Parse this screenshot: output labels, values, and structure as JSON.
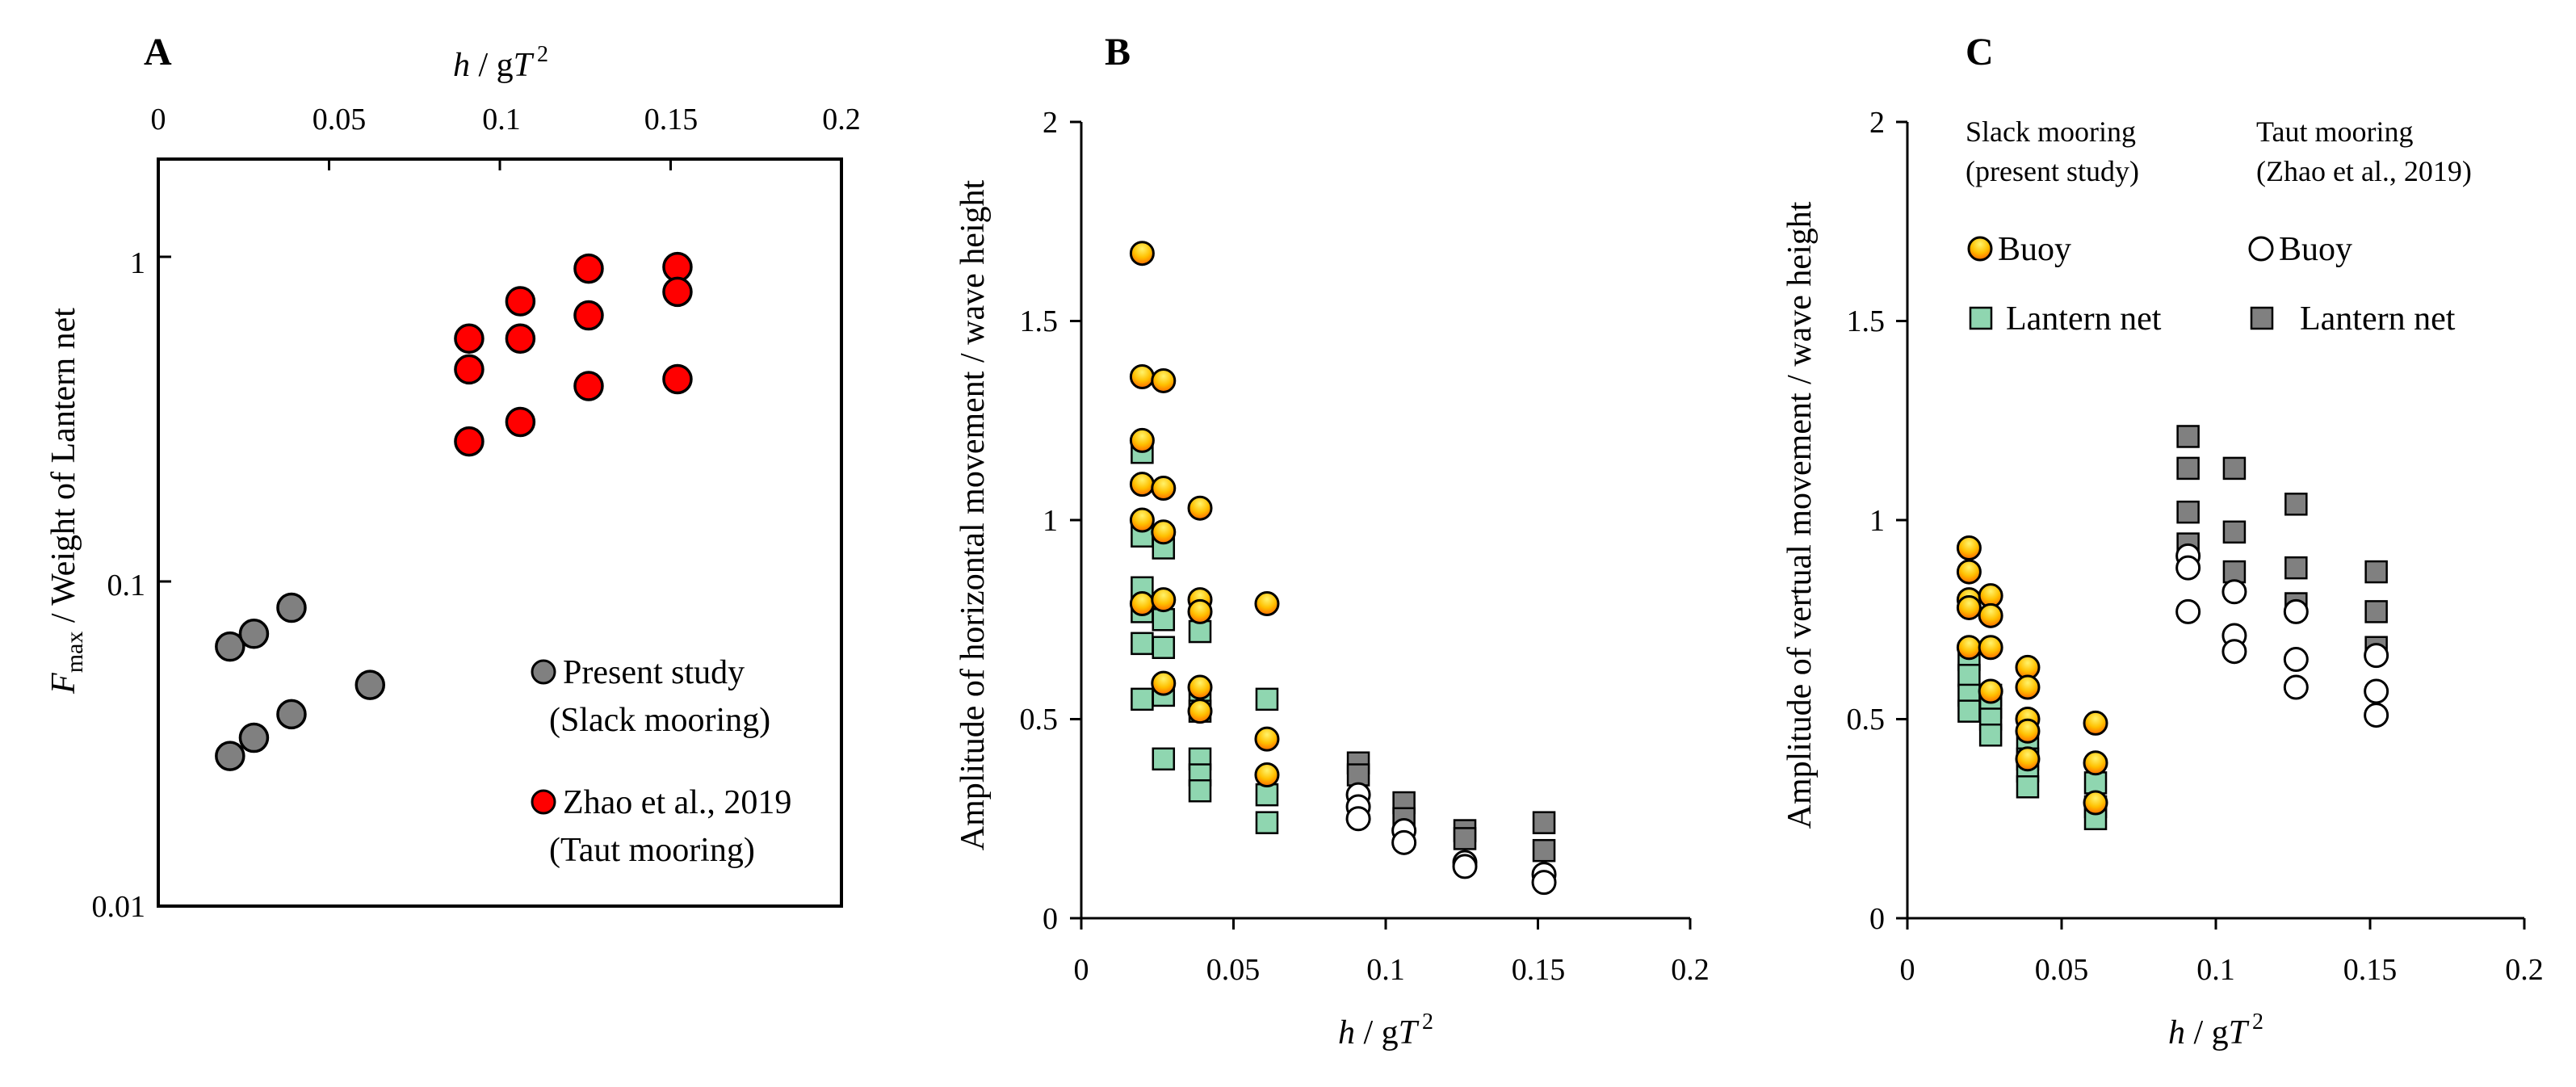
{
  "chart_data": [
    {
      "panel": "A",
      "type": "scatter",
      "xlabel": "h / gT 2",
      "xlabel_parts": {
        "h": "h",
        "sep": " / g",
        "T": "T",
        "exp": "2"
      },
      "ylabel": "F max / Weight of Lantern net",
      "ylabel_parts": {
        "F": "F",
        "sub": "max",
        "rest": " / Weight of  Lantern net"
      },
      "xlim": [
        0,
        0.2
      ],
      "ylim": [
        0.01,
        2
      ],
      "y_scale": "log",
      "x_axis_position": "top",
      "xticks": [
        "0",
        "0.05",
        "0.1",
        "0.15",
        "0.2"
      ],
      "yticks": [
        "0.01",
        "0.1",
        "1"
      ],
      "legend_position": "bottom-right",
      "series": [
        {
          "name": "Present study (Slack mooring)",
          "legend_lines": [
            "Present study",
            "(Slack mooring)"
          ],
          "marker": "circle",
          "color": "#808080",
          "points": [
            [
              0.021,
              0.063
            ],
            [
              0.021,
              0.029
            ],
            [
              0.028,
              0.069
            ],
            [
              0.028,
              0.033
            ],
            [
              0.039,
              0.083
            ],
            [
              0.039,
              0.039
            ],
            [
              0.062,
              0.048
            ]
          ]
        },
        {
          "name": "Zhao et al., 2019 (Taut mooring)",
          "legend_lines": [
            "Zhao et al., 2019",
            "(Taut mooring)"
          ],
          "marker": "circle",
          "color": "#ff0000",
          "points": [
            [
              0.091,
              0.56
            ],
            [
              0.091,
              0.45
            ],
            [
              0.091,
              0.27
            ],
            [
              0.106,
              0.73
            ],
            [
              0.106,
              0.56
            ],
            [
              0.106,
              0.31
            ],
            [
              0.126,
              0.92
            ],
            [
              0.126,
              0.66
            ],
            [
              0.126,
              0.4
            ],
            [
              0.152,
              0.93
            ],
            [
              0.152,
              0.78
            ],
            [
              0.152,
              0.42
            ]
          ]
        }
      ]
    },
    {
      "panel": "B",
      "type": "scatter",
      "xlabel": "h / gT 2",
      "ylabel": "Amplitude of horizontal  movement / wave height",
      "xlim": [
        0,
        0.2
      ],
      "ylim": [
        0,
        2
      ],
      "xticks": [
        "0",
        "0.05",
        "0.1",
        "0.15",
        "0.2"
      ],
      "yticks": [
        "0",
        "0.5",
        "1",
        "1.5",
        "2"
      ],
      "series": [
        {
          "name": "Buoy (Slack mooring)",
          "marker": "circle-gradient",
          "color": "#ffc000",
          "points": [
            [
              0.02,
              1.67
            ],
            [
              0.02,
              1.36
            ],
            [
              0.02,
              1.2
            ],
            [
              0.02,
              1.09
            ],
            [
              0.02,
              1.0
            ],
            [
              0.02,
              0.79
            ],
            [
              0.027,
              1.35
            ],
            [
              0.027,
              1.08
            ],
            [
              0.027,
              0.97
            ],
            [
              0.027,
              0.8
            ],
            [
              0.027,
              0.59
            ],
            [
              0.039,
              1.03
            ],
            [
              0.039,
              0.8
            ],
            [
              0.039,
              0.77
            ],
            [
              0.039,
              0.58
            ],
            [
              0.039,
              0.52
            ],
            [
              0.061,
              0.79
            ],
            [
              0.061,
              0.45
            ],
            [
              0.061,
              0.36
            ]
          ]
        },
        {
          "name": "Lantern net (Slack mooring)",
          "marker": "square",
          "color": "#8fd6b0",
          "points": [
            [
              0.02,
              1.17
            ],
            [
              0.02,
              0.96
            ],
            [
              0.02,
              0.83
            ],
            [
              0.02,
              0.77
            ],
            [
              0.02,
              0.69
            ],
            [
              0.02,
              0.55
            ],
            [
              0.027,
              0.93
            ],
            [
              0.027,
              0.75
            ],
            [
              0.027,
              0.68
            ],
            [
              0.027,
              0.56
            ],
            [
              0.027,
              0.4
            ],
            [
              0.039,
              0.72
            ],
            [
              0.039,
              0.56
            ],
            [
              0.039,
              0.52
            ],
            [
              0.039,
              0.4
            ],
            [
              0.039,
              0.36
            ],
            [
              0.039,
              0.32
            ],
            [
              0.061,
              0.55
            ],
            [
              0.061,
              0.31
            ],
            [
              0.061,
              0.24
            ]
          ]
        },
        {
          "name": "Buoy (Taut mooring)",
          "marker": "circle-open",
          "color": "#ffffff",
          "points": [
            [
              0.091,
              0.31
            ],
            [
              0.091,
              0.28
            ],
            [
              0.091,
              0.25
            ],
            [
              0.106,
              0.22
            ],
            [
              0.106,
              0.19
            ],
            [
              0.126,
              0.14
            ],
            [
              0.126,
              0.13
            ],
            [
              0.152,
              0.11
            ],
            [
              0.152,
              0.09
            ]
          ]
        },
        {
          "name": "Lantern net (Taut mooring)",
          "marker": "square",
          "color": "#808080",
          "points": [
            [
              0.091,
              0.39
            ],
            [
              0.091,
              0.36
            ],
            [
              0.106,
              0.29
            ],
            [
              0.106,
              0.25
            ],
            [
              0.126,
              0.22
            ],
            [
              0.126,
              0.2
            ],
            [
              0.152,
              0.24
            ],
            [
              0.152,
              0.17
            ]
          ]
        }
      ]
    },
    {
      "panel": "C",
      "type": "scatter",
      "xlabel": "h / gT 2",
      "ylabel": "Amplitude of vertual movement / wave height",
      "xlim": [
        0,
        0.2
      ],
      "ylim": [
        0,
        2
      ],
      "xticks": [
        "0",
        "0.05",
        "0.1",
        "0.15",
        "0.2"
      ],
      "yticks": [
        "0",
        "0.5",
        "1",
        "1.5",
        "2"
      ],
      "legend_position": "top",
      "legend_headers": {
        "slack": [
          "Slack mooring",
          "(present study)"
        ],
        "taut": [
          "Taut mooring",
          "(Zhao et al., 2019)"
        ]
      },
      "legend_entries": {
        "slack_buoy": "Buoy",
        "slack_net": "Lantern net",
        "taut_buoy": "Buoy",
        "taut_net": "Lantern net"
      },
      "series": [
        {
          "name": "Buoy (Slack mooring)",
          "marker": "circle-gradient",
          "color": "#ffc000",
          "points": [
            [
              0.02,
              0.93
            ],
            [
              0.02,
              0.87
            ],
            [
              0.02,
              0.8
            ],
            [
              0.02,
              0.78
            ],
            [
              0.02,
              0.68
            ],
            [
              0.027,
              0.81
            ],
            [
              0.027,
              0.76
            ],
            [
              0.027,
              0.68
            ],
            [
              0.027,
              0.57
            ],
            [
              0.039,
              0.63
            ],
            [
              0.039,
              0.58
            ],
            [
              0.039,
              0.5
            ],
            [
              0.039,
              0.47
            ],
            [
              0.039,
              0.4
            ],
            [
              0.061,
              0.49
            ],
            [
              0.061,
              0.39
            ],
            [
              0.061,
              0.29
            ]
          ]
        },
        {
          "name": "Lantern net (Slack mooring)",
          "marker": "square",
          "color": "#8fd6b0",
          "points": [
            [
              0.02,
              0.65
            ],
            [
              0.02,
              0.61
            ],
            [
              0.02,
              0.56
            ],
            [
              0.02,
              0.52
            ],
            [
              0.027,
              0.56
            ],
            [
              0.027,
              0.53
            ],
            [
              0.027,
              0.5
            ],
            [
              0.027,
              0.46
            ],
            [
              0.039,
              0.44
            ],
            [
              0.039,
              0.4
            ],
            [
              0.039,
              0.37
            ],
            [
              0.039,
              0.33
            ],
            [
              0.061,
              0.34
            ],
            [
              0.061,
              0.28
            ],
            [
              0.061,
              0.25
            ]
          ]
        },
        {
          "name": "Buoy (Taut mooring)",
          "marker": "circle-open",
          "color": "#ffffff",
          "points": [
            [
              0.091,
              0.91
            ],
            [
              0.091,
              0.88
            ],
            [
              0.091,
              0.77
            ],
            [
              0.106,
              0.82
            ],
            [
              0.106,
              0.71
            ],
            [
              0.106,
              0.67
            ],
            [
              0.126,
              0.77
            ],
            [
              0.126,
              0.65
            ],
            [
              0.126,
              0.58
            ],
            [
              0.152,
              0.66
            ],
            [
              0.152,
              0.57
            ],
            [
              0.152,
              0.51
            ]
          ]
        },
        {
          "name": "Lantern net (Taut mooring)",
          "marker": "square",
          "color": "#808080",
          "points": [
            [
              0.091,
              1.21
            ],
            [
              0.091,
              1.13
            ],
            [
              0.091,
              1.02
            ],
            [
              0.091,
              0.94
            ],
            [
              0.106,
              1.13
            ],
            [
              0.106,
              0.97
            ],
            [
              0.106,
              0.87
            ],
            [
              0.126,
              1.04
            ],
            [
              0.126,
              0.88
            ],
            [
              0.126,
              0.79
            ],
            [
              0.152,
              0.87
            ],
            [
              0.152,
              0.77
            ],
            [
              0.152,
              0.68
            ]
          ]
        }
      ]
    }
  ]
}
